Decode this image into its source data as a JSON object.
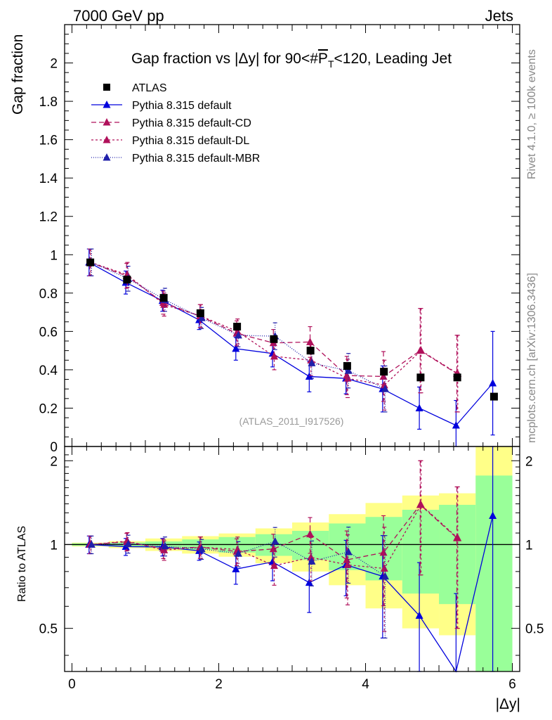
{
  "header": {
    "left": "7000 GeV pp",
    "right": "Jets"
  },
  "side": {
    "rivet": "Rivet 4.1.0, ≥ 100k events",
    "mcplots": "mcplots.cern.ch [arXiv:1306.3436]"
  },
  "chart_data": {
    "type": "scatter",
    "title_parts": {
      "pre": "Gap fraction vs |Δy| for 90<#",
      "overline": "P",
      "sub": "T",
      "post": "<120, Leading Jet"
    },
    "ylabel": "Gap fraction",
    "ratio_ylabel": "Ratio to ATLAS",
    "xlabel": "|Δy|",
    "analysis_id": "(ATLAS_2011_I917526)",
    "xlim": [
      -0.1,
      6.1
    ],
    "ylim": [
      0,
      2.2
    ],
    "ratio_ylim": [
      0.35,
      2.25
    ],
    "x_ticks": [
      0,
      2,
      4,
      6
    ],
    "y_ticks": [
      0,
      0.2,
      0.4,
      0.6,
      0.8,
      1,
      1.2,
      1.4,
      1.6,
      1.8,
      2
    ],
    "ratio_ticks": [
      0.5,
      1,
      2
    ],
    "x": [
      0.25,
      0.75,
      1.25,
      1.75,
      2.25,
      2.75,
      3.25,
      3.75,
      4.25,
      4.75,
      5.25,
      5.75
    ],
    "data": {
      "name": "ATLAS",
      "values": [
        0.96,
        0.87,
        0.775,
        0.695,
        0.625,
        0.56,
        0.5,
        0.42,
        0.39,
        0.36,
        0.36,
        0.26
      ],
      "band_inner": [
        0.01,
        0.015,
        0.02,
        0.03,
        0.04,
        0.05,
        0.06,
        0.08,
        0.1,
        0.12,
        0.14,
        0.2
      ],
      "band_outer": [
        0.015,
        0.025,
        0.04,
        0.05,
        0.06,
        0.08,
        0.1,
        0.12,
        0.16,
        0.18,
        0.19,
        0.47
      ]
    },
    "series": [
      {
        "name": "Pythia 8.315 default",
        "color": "#0000dd",
        "dash": "",
        "values": [
          0.96,
          0.855,
          0.76,
          0.66,
          0.51,
          0.485,
          0.365,
          0.355,
          0.3,
          0.2,
          0.11,
          0.33
        ],
        "errors": [
          0.07,
          0.06,
          0.055,
          0.05,
          0.06,
          0.07,
          0.08,
          0.08,
          0.12,
          0.11,
          0.13,
          0.27
        ]
      },
      {
        "name": "Pythia 8.315 default-CD",
        "color": "#b0105a",
        "dash": "7,4",
        "values": [
          0.96,
          0.89,
          0.75,
          0.68,
          0.59,
          0.54,
          0.545,
          0.37,
          0.365,
          0.5,
          0.38,
          null
        ],
        "errors": [
          0.07,
          0.065,
          0.06,
          0.06,
          0.065,
          0.07,
          0.08,
          0.1,
          0.13,
          0.22,
          0.2,
          null
        ]
      },
      {
        "name": "Pythia 8.315 default-DL",
        "color": "#b0105a",
        "dash": "3,3",
        "values": [
          0.96,
          0.895,
          0.74,
          0.68,
          0.6,
          0.47,
          0.45,
          0.355,
          0.32,
          0.5,
          0.38,
          null
        ],
        "errors": [
          0.07,
          0.065,
          0.06,
          0.06,
          0.065,
          0.07,
          0.08,
          0.1,
          0.13,
          0.22,
          0.2,
          null
        ]
      },
      {
        "name": "Pythia 8.315 default-MBR",
        "color": "#2020aa",
        "dash": "1,2",
        "values": [
          0.96,
          0.875,
          0.765,
          0.67,
          0.58,
          0.575,
          0.435,
          0.395,
          0.3,
          null,
          null,
          null
        ],
        "errors": [
          0.07,
          0.065,
          0.06,
          0.055,
          0.06,
          0.07,
          0.08,
          0.09,
          0.12,
          null,
          null,
          null
        ]
      }
    ]
  }
}
